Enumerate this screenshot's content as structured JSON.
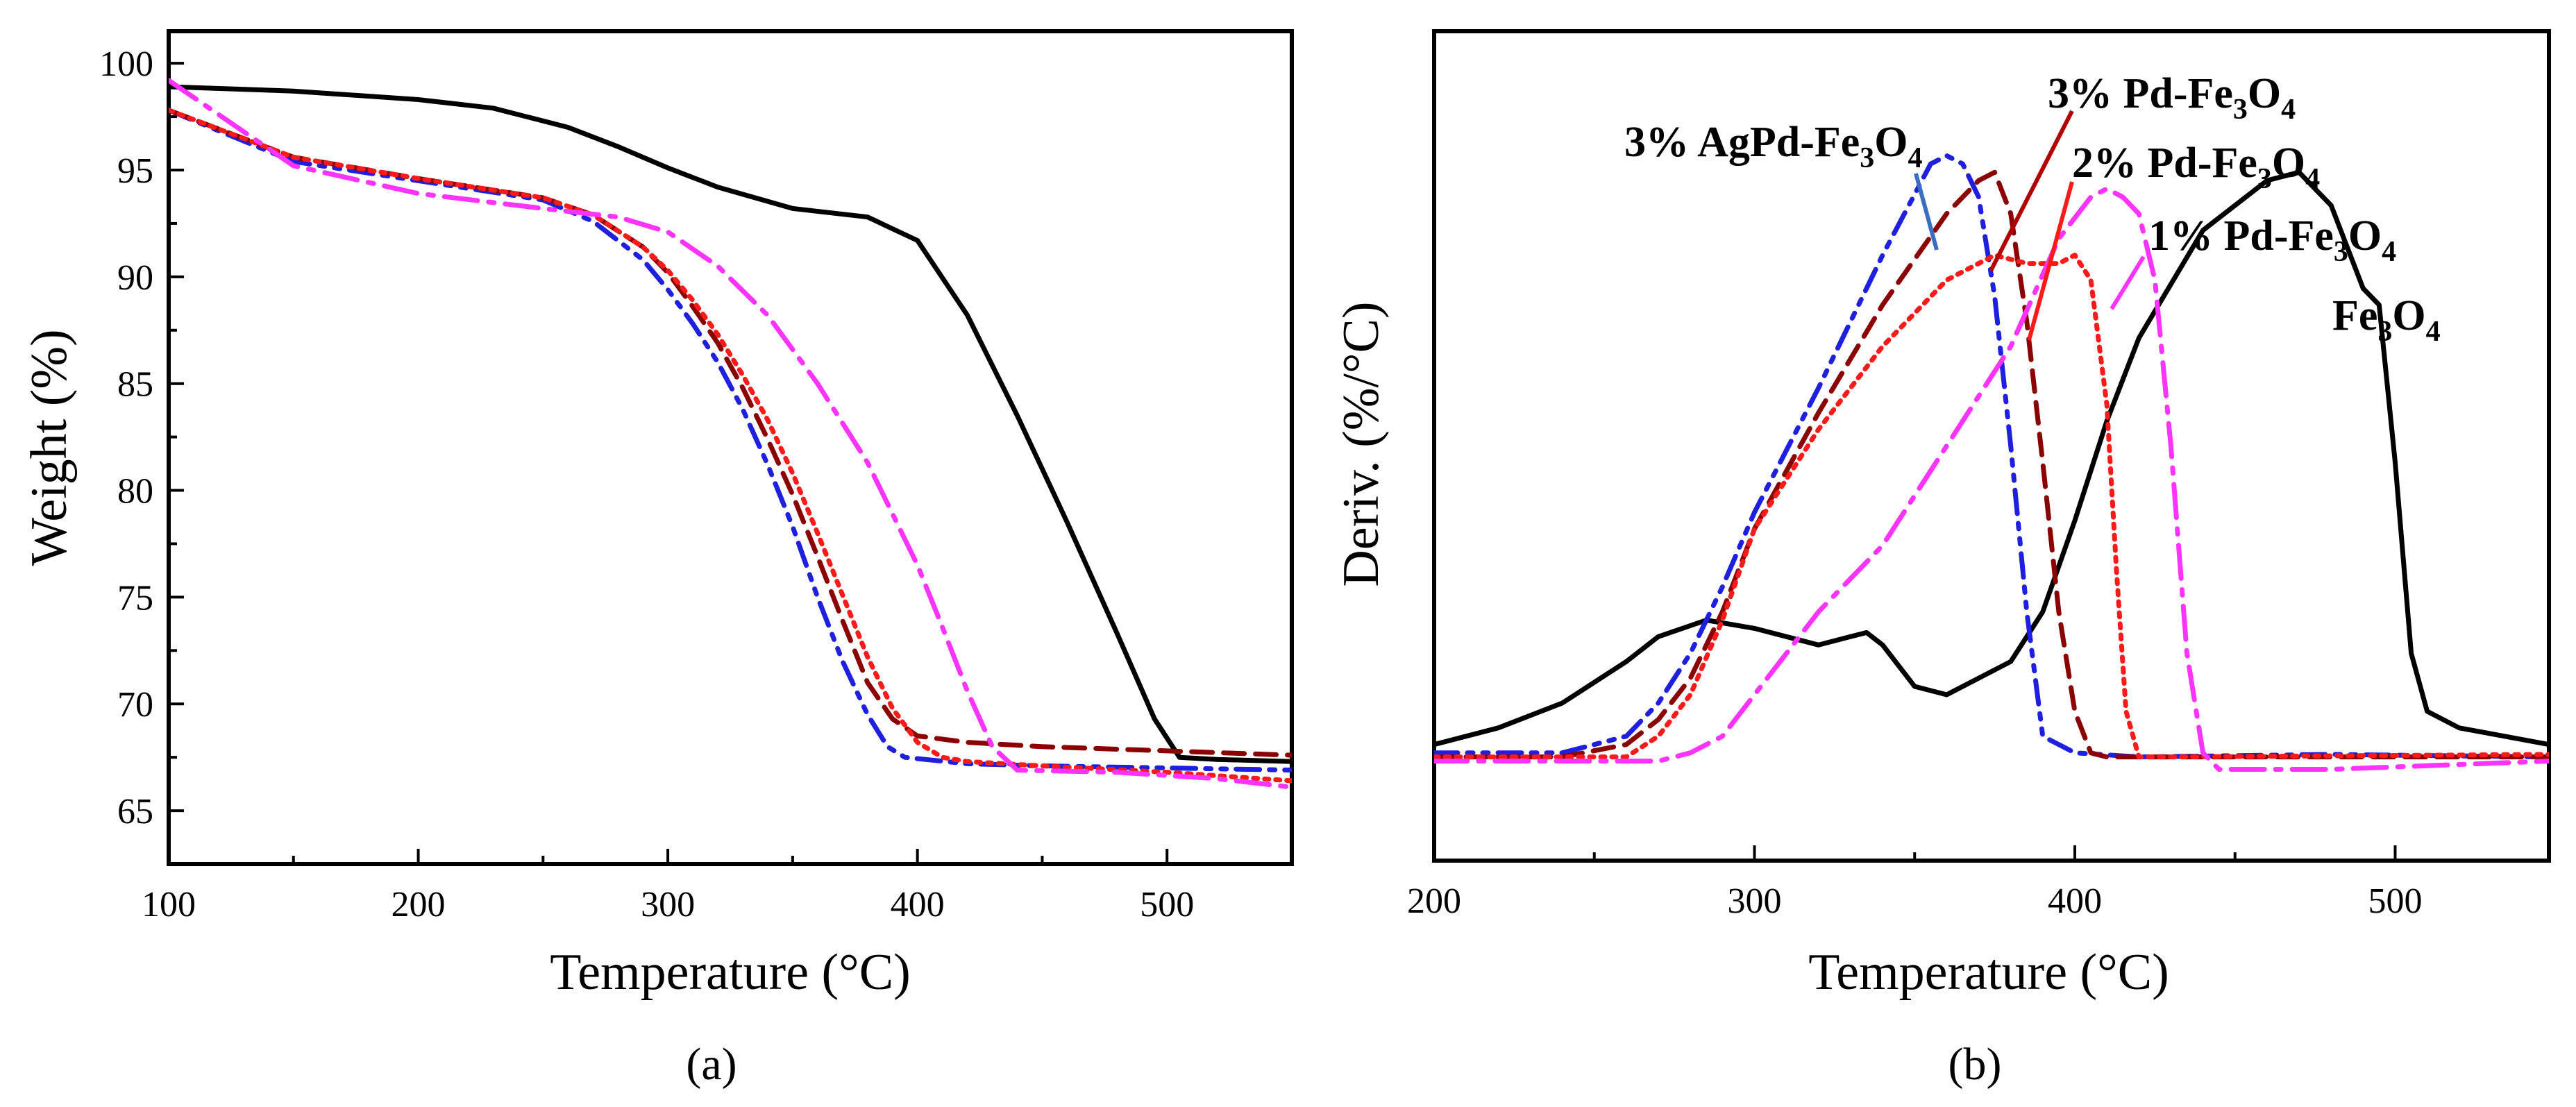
{
  "chart_data": [
    {
      "type": "line",
      "panel_label": "(a)",
      "xlabel": "Temperature (°C)",
      "ylabel": "Weight (%)",
      "xlim": [
        100,
        550
      ],
      "ylim": [
        62.5,
        101.5
      ],
      "x_ticks": [
        100,
        200,
        300,
        400,
        500
      ],
      "x_tick_labels": [
        "100",
        "200",
        "300",
        "400",
        "500"
      ],
      "y_ticks": [
        65,
        70,
        75,
        80,
        85,
        90,
        95,
        100
      ],
      "y_tick_labels": [
        "65",
        "70",
        "75",
        "80",
        "85",
        "90",
        "95",
        "100"
      ],
      "series": [
        {
          "name": "Fe3O4",
          "color": "#000000",
          "dash": "solid",
          "x": [
            100,
            150,
            200,
            230,
            260,
            280,
            300,
            320,
            350,
            380,
            400,
            420,
            440,
            460,
            480,
            495,
            505,
            520,
            550
          ],
          "y": [
            98.9,
            98.7,
            98.3,
            97.9,
            97.0,
            96.1,
            95.1,
            94.2,
            93.2,
            92.8,
            91.7,
            88.2,
            83.5,
            78.5,
            73.3,
            69.3,
            67.5,
            67.4,
            67.3
          ]
        },
        {
          "name": "3% AgPd-Fe3O4",
          "color": "#1f1fe0",
          "dash": "dashdot",
          "x": [
            100,
            150,
            200,
            250,
            270,
            290,
            300,
            310,
            320,
            330,
            340,
            350,
            360,
            370,
            380,
            388,
            395,
            420,
            450,
            500,
            550
          ],
          "y": [
            97.8,
            95.4,
            94.5,
            93.6,
            92.6,
            90.8,
            89.4,
            87.8,
            86.0,
            83.8,
            81.2,
            78.3,
            75.0,
            72.0,
            69.5,
            68.0,
            67.5,
            67.2,
            67.1,
            67.0,
            66.9
          ]
        },
        {
          "name": "3% Pd-Fe3O4",
          "color": "#8b0000",
          "dash": "dash",
          "x": [
            100,
            150,
            200,
            250,
            270,
            290,
            300,
            310,
            320,
            330,
            340,
            350,
            360,
            370,
            380,
            390,
            400,
            420,
            450,
            500,
            550
          ],
          "y": [
            97.8,
            95.6,
            94.6,
            93.7,
            92.9,
            91.4,
            90.2,
            88.6,
            86.9,
            84.8,
            82.4,
            79.8,
            76.9,
            73.9,
            71.0,
            69.3,
            68.5,
            68.2,
            68.0,
            67.8,
            67.6
          ]
        },
        {
          "name": "2% Pd-Fe3O4",
          "color": "#ff1a1a",
          "dash": "dot",
          "x": [
            100,
            150,
            200,
            250,
            270,
            290,
            300,
            310,
            320,
            330,
            340,
            350,
            360,
            370,
            380,
            390,
            400,
            410,
            420,
            450,
            500,
            550
          ],
          "y": [
            97.8,
            95.6,
            94.6,
            93.7,
            92.9,
            91.4,
            90.3,
            88.9,
            87.3,
            85.4,
            83.3,
            80.8,
            78.0,
            75.1,
            72.2,
            69.8,
            68.2,
            67.5,
            67.3,
            67.1,
            66.8,
            66.4
          ]
        },
        {
          "name": "1% Pd-Fe3O4",
          "color": "#ff33ff",
          "dash": "longdashdot",
          "x": [
            100,
            150,
            200,
            250,
            280,
            300,
            320,
            340,
            360,
            380,
            400,
            410,
            420,
            430,
            440,
            480,
            520,
            550
          ],
          "y": [
            99.2,
            95.2,
            93.9,
            93.2,
            92.8,
            92.1,
            90.5,
            88.2,
            85.0,
            81.3,
            76.5,
            73.6,
            70.6,
            68.0,
            66.9,
            66.8,
            66.5,
            66.1
          ]
        }
      ]
    },
    {
      "type": "line",
      "panel_label": "(b)",
      "xlabel": "Temperature (°C)",
      "ylabel": "Deriv. (%/°C)",
      "xlim": [
        200,
        548
      ],
      "ylim": [
        0,
        100
      ],
      "x_ticks": [
        200,
        300,
        400,
        500
      ],
      "x_tick_labels": [
        "200",
        "300",
        "400",
        "500"
      ],
      "series": [
        {
          "name": "Fe3O4",
          "color": "#000000",
          "dash": "solid",
          "x": [
            200,
            220,
            240,
            260,
            270,
            285,
            300,
            320,
            330,
            335,
            340,
            350,
            360,
            380,
            390,
            400,
            410,
            420,
            440,
            460,
            470,
            480,
            490,
            495,
            500,
            505,
            510,
            520,
            548
          ],
          "y": [
            14,
            16,
            19,
            24,
            27,
            29,
            28,
            26,
            27,
            27.5,
            26,
            21,
            20,
            24,
            30,
            41,
            53,
            63,
            76,
            82,
            83,
            79,
            69,
            67,
            48,
            25,
            18,
            16,
            14
          ]
        },
        {
          "name": "3% AgPd-Fe3O4",
          "color": "#1f1fe0",
          "dash": "dashdot",
          "x": [
            200,
            240,
            260,
            270,
            280,
            290,
            300,
            320,
            340,
            355,
            360,
            365,
            370,
            375,
            380,
            385,
            390,
            400,
            420,
            480,
            548
          ],
          "y": [
            13,
            13,
            15,
            19,
            25,
            33,
            42,
            57,
            73,
            84,
            85,
            84,
            80,
            68,
            50,
            30,
            15,
            13,
            12.5,
            12.8,
            12.5
          ]
        },
        {
          "name": "3% Pd-Fe3O4",
          "color": "#8b0000",
          "dash": "dash",
          "x": [
            200,
            240,
            260,
            270,
            280,
            290,
            300,
            320,
            340,
            360,
            370,
            375,
            380,
            385,
            390,
            395,
            400,
            405,
            410,
            440,
            548
          ],
          "y": [
            12.5,
            12.5,
            14,
            17,
            22,
            30,
            40,
            54,
            67,
            78,
            82,
            83,
            78,
            65,
            48,
            30,
            18,
            13,
            12.5,
            12.5,
            12.5
          ]
        },
        {
          "name": "2% Pd-Fe3O4",
          "color": "#ff1a1a",
          "dash": "dot",
          "x": [
            200,
            260,
            270,
            280,
            290,
            300,
            320,
            340,
            360,
            375,
            385,
            395,
            400,
            405,
            410,
            413,
            416,
            420,
            430,
            548
          ],
          "y": [
            12.5,
            12.5,
            15,
            20,
            29,
            40,
            52,
            62,
            70,
            73,
            72,
            72,
            73,
            70,
            55,
            35,
            18,
            12.5,
            12.5,
            12.8
          ]
        },
        {
          "name": "1% Pd-Fe3O4",
          "color": "#ff33ff",
          "dash": "longdashdot",
          "x": [
            200,
            270,
            280,
            290,
            300,
            320,
            340,
            360,
            380,
            395,
            405,
            410,
            415,
            420,
            425,
            430,
            435,
            440,
            445,
            480,
            548
          ],
          "y": [
            12,
            12,
            13,
            15,
            20,
            30,
            38,
            50,
            62,
            75,
            80,
            81,
            80,
            78,
            70,
            50,
            25,
            13,
            11,
            11,
            12
          ]
        }
      ],
      "annotations": [
        {
          "text": "3% AgPd-Fe",
          "subscript": "3",
          "text2": "O",
          "subscript2": "4",
          "color": "#1f1fe0",
          "series": "3% AgPd-Fe3O4"
        },
        {
          "text": "3% Pd-Fe",
          "subscript": "3",
          "text2": "O",
          "subscript2": "4",
          "color": "#b00000",
          "series": "3% Pd-Fe3O4"
        },
        {
          "text": "2% Pd-Fe",
          "subscript": "3",
          "text2": "O",
          "subscript2": "4",
          "color": "#ff1a1a",
          "series": "2% Pd-Fe3O4"
        },
        {
          "text": "1% Pd-Fe",
          "subscript": "3",
          "text2": "O",
          "subscript2": "4",
          "color": "#ff33ff",
          "series": "1% Pd-Fe3O4"
        },
        {
          "text": "Fe",
          "subscript": "3",
          "text2": "O",
          "subscript2": "4",
          "color": "#000000",
          "series": "Fe3O4"
        }
      ]
    }
  ]
}
